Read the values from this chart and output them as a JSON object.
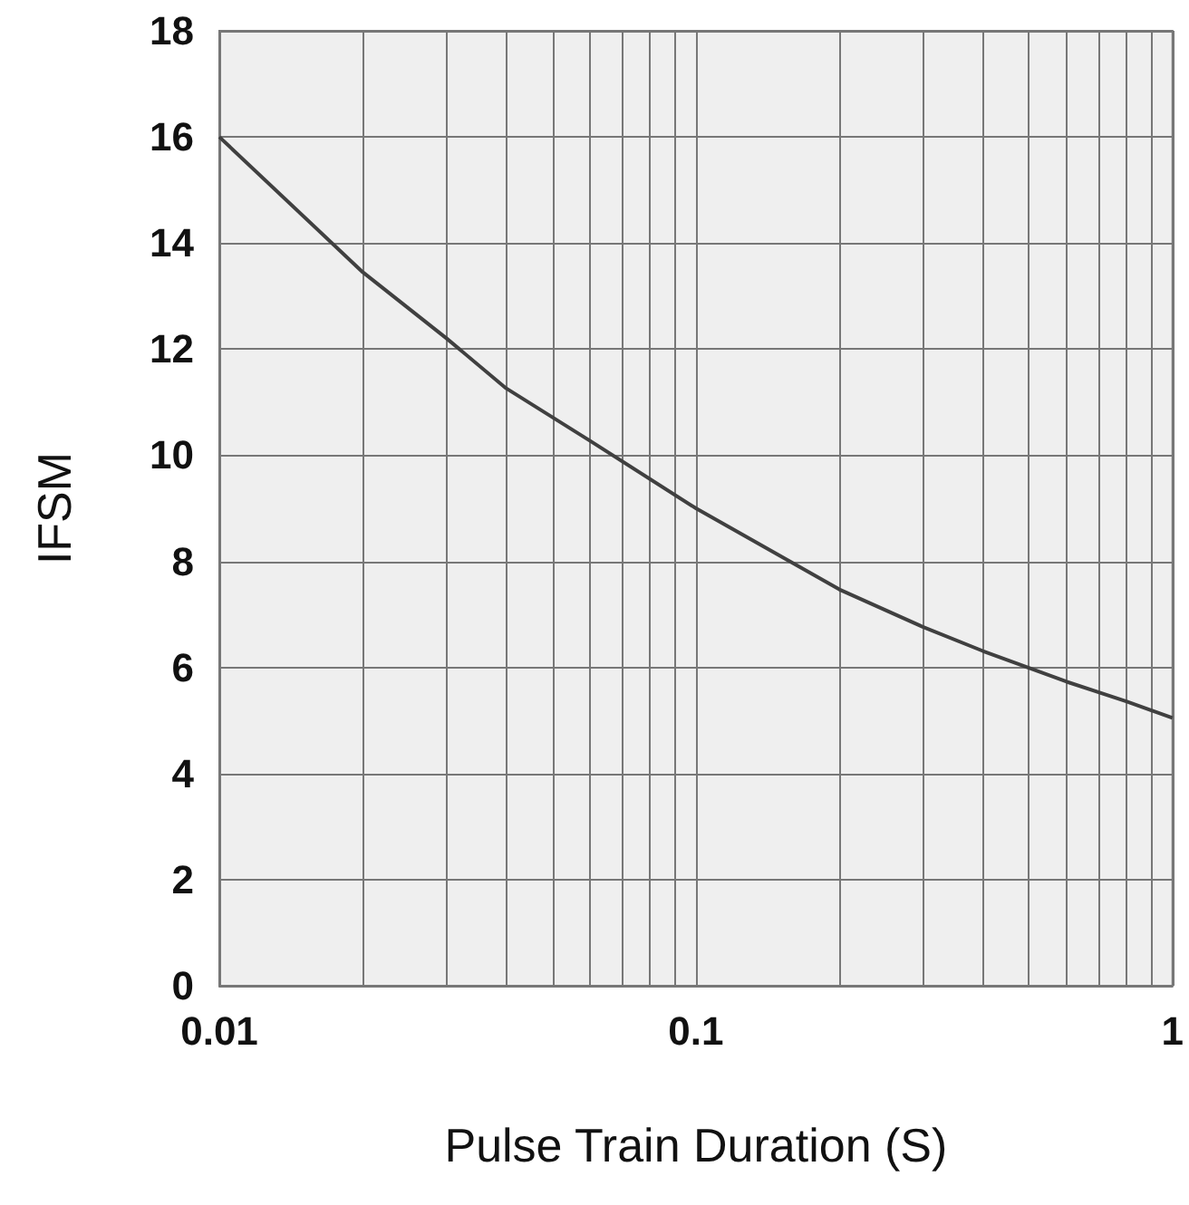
{
  "chart_data": {
    "type": "line",
    "xlabel": "Pulse Train Duration (S)",
    "ylabel": "IFSM",
    "x": [
      0.01,
      0.02,
      0.03,
      0.04,
      0.06,
      0.1,
      0.2,
      0.3,
      0.4,
      0.6,
      0.8,
      1
    ],
    "series": [
      {
        "color": "#404040",
        "values": [
          16.0,
          13.45,
          12.2,
          11.26,
          10.27,
          9.0,
          7.47,
          6.76,
          6.31,
          5.73,
          5.36,
          5.05
        ]
      }
    ],
    "log": "x",
    "xlim": [
      0.01,
      1
    ],
    "xticks": [
      0.01,
      {
        "value": 0.02,
        "label": null
      },
      {
        "value": 0.03,
        "label": null
      },
      {
        "value": 0.04,
        "label": null
      },
      {
        "value": 0.05,
        "label": null
      },
      {
        "value": 0.06,
        "label": null
      },
      {
        "value": 0.07,
        "label": null
      },
      {
        "value": 0.08,
        "label": null
      },
      {
        "value": 0.09,
        "label": null
      },
      0.1,
      {
        "value": 0.2,
        "label": null
      },
      {
        "value": 0.3,
        "label": null
      },
      {
        "value": 0.4,
        "label": null
      },
      {
        "value": 0.5,
        "label": null
      },
      {
        "value": 0.6,
        "label": null
      },
      {
        "value": 0.7,
        "label": null
      },
      {
        "value": 0.8,
        "label": null
      },
      {
        "value": 0.9,
        "label": null
      },
      1
    ],
    "ylim": [
      0,
      18
    ],
    "yticks": [
      0,
      2,
      4,
      6,
      8,
      10,
      12,
      14,
      16,
      18
    ],
    "grid": true,
    "marker": "none",
    "line_style": "solid"
  }
}
